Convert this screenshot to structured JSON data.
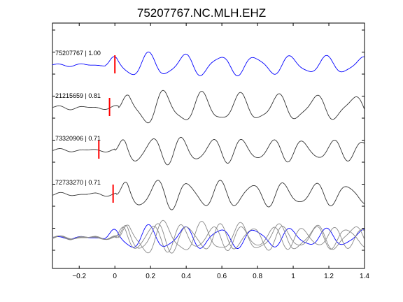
{
  "chart_data": {
    "type": "line",
    "title": "75207767.NC.MLH.EHZ",
    "xlabel": "",
    "ylabel": "",
    "xlim": [
      -0.35,
      1.4
    ],
    "xticks": [
      -0.2,
      0,
      0.2,
      0.4,
      0.6,
      0.8,
      1,
      1.2,
      1.4
    ],
    "xtick_labels": [
      "−0.2",
      "0",
      "0.2",
      "0.4",
      "0.6",
      "0.8",
      "1",
      "1.2",
      "1.4"
    ],
    "grid": false,
    "traces": [
      {
        "label": "75207767 | 1.00",
        "color": "#0000ff",
        "pick_time": 0.0,
        "amplitude": 0.65,
        "seed": 1,
        "onset_time": -0.05
      },
      {
        "label": "21215659 | 0.81",
        "color": "#333333",
        "pick_time": -0.03,
        "amplitude": 0.9,
        "seed": 2,
        "onset_time": 0.02
      },
      {
        "label": "73320906 | 0.71",
        "color": "#333333",
        "pick_time": -0.09,
        "amplitude": 0.75,
        "seed": 3,
        "onset_time": 0.0
      },
      {
        "label": "72733270 | 0.71",
        "color": "#333333",
        "pick_time": -0.01,
        "amplitude": 0.8,
        "seed": 4,
        "onset_time": 0.01
      }
    ],
    "overlay": {
      "highlight_color": "#0000ff",
      "other_color": "#888888"
    },
    "pick_color": "#ff0000"
  }
}
